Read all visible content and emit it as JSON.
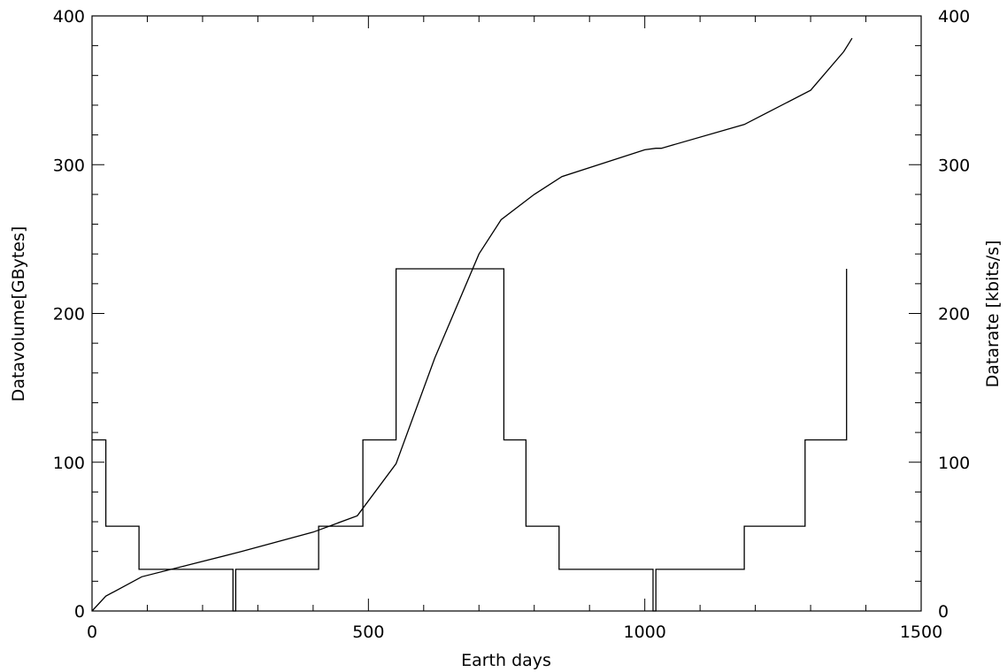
{
  "chart_data": {
    "type": "line",
    "title": "",
    "xlabel": "Earth days",
    "ylabel_left": "Datavolume[GBytes]",
    "ylabel_right": "Datarate [kbits/s]",
    "xlim": [
      0,
      1500
    ],
    "ylim_left": [
      0,
      400
    ],
    "ylim_right": [
      0,
      400
    ],
    "x_ticks": [
      0,
      500,
      1000,
      1500
    ],
    "y_ticks_left": [
      0,
      100,
      200,
      300,
      400
    ],
    "y_ticks_right": [
      0,
      100,
      200,
      300,
      400
    ],
    "grid": false,
    "series": [
      {
        "axis": "left",
        "x": [
          0,
          25,
          90,
          260,
          270,
          400,
          480,
          550,
          620,
          700,
          740,
          800,
          850,
          1000,
          1020,
          1030,
          1180,
          1300,
          1360,
          1370,
          1375
        ],
        "y": [
          0,
          10,
          23,
          39,
          40,
          53,
          64,
          99,
          170,
          240,
          263,
          280,
          292,
          310,
          311,
          311,
          327,
          350,
          376,
          382,
          385
        ]
      },
      {
        "axis": "right",
        "x": [
          0,
          25,
          25,
          85,
          85,
          255,
          255,
          260,
          260,
          410,
          410,
          490,
          490,
          550,
          550,
          745,
          745,
          785,
          785,
          845,
          845,
          1015,
          1015,
          1020,
          1020,
          1180,
          1180,
          1290,
          1290,
          1365,
          1365
        ],
        "y": [
          115,
          115,
          57,
          57,
          28,
          28,
          0,
          0,
          28,
          28,
          57,
          57,
          115,
          115,
          230,
          230,
          115,
          115,
          57,
          57,
          28,
          28,
          0,
          0,
          28,
          28,
          57,
          57,
          115,
          115,
          230
        ]
      }
    ]
  }
}
